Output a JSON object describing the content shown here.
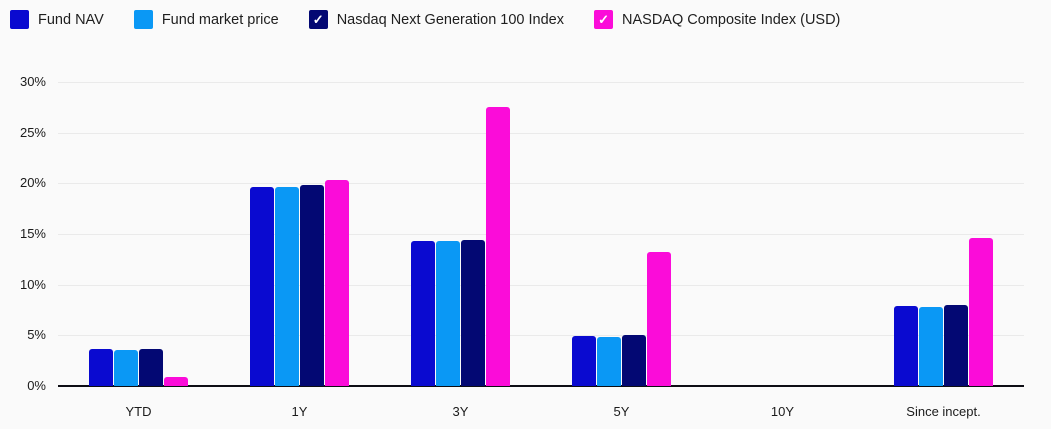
{
  "legend": {
    "check_icon": "✓",
    "items": [
      {
        "label": "Fund NAV",
        "color": "#0a0ad0",
        "checked": false
      },
      {
        "label": "Fund market price",
        "color": "#0a98f5",
        "checked": false
      },
      {
        "label": "Nasdaq Next Generation 100 Index",
        "color": "#030873",
        "checked": true
      },
      {
        "label": "NASDAQ Composite Index (USD)",
        "color": "#fb0cd9",
        "checked": true
      }
    ]
  },
  "chart_data": {
    "type": "bar",
    "title": "",
    "xlabel": "",
    "ylabel": "",
    "categories": [
      "YTD",
      "1Y",
      "3Y",
      "5Y",
      "10Y",
      "Since incept."
    ],
    "series": [
      {
        "name": "Fund NAV",
        "color": "#0a0ad0",
        "values": [
          3.7,
          19.6,
          14.3,
          4.9,
          null,
          7.9
        ]
      },
      {
        "name": "Fund market price",
        "color": "#0a98f5",
        "values": [
          3.6,
          19.6,
          14.3,
          4.8,
          null,
          7.8
        ]
      },
      {
        "name": "Nasdaq Next Generation 100 Index",
        "color": "#030873",
        "values": [
          3.7,
          19.8,
          14.4,
          5.0,
          null,
          8.0
        ]
      },
      {
        "name": "NASDAQ Composite Index (USD)",
        "color": "#fb0cd9",
        "values": [
          0.9,
          20.3,
          27.5,
          13.2,
          null,
          14.6
        ]
      }
    ],
    "ylim": [
      0,
      30
    ],
    "y_tick_step": 5,
    "y_tick_labels": [
      "0%",
      "5%",
      "10%",
      "15%",
      "20%",
      "25%",
      "30%"
    ],
    "grid": true,
    "legend_position": "top"
  },
  "colors": {
    "background": "#fafafa",
    "gridline": "#eaeaea",
    "axis_line": "#0d0d14",
    "text": "#1b1b1b"
  }
}
